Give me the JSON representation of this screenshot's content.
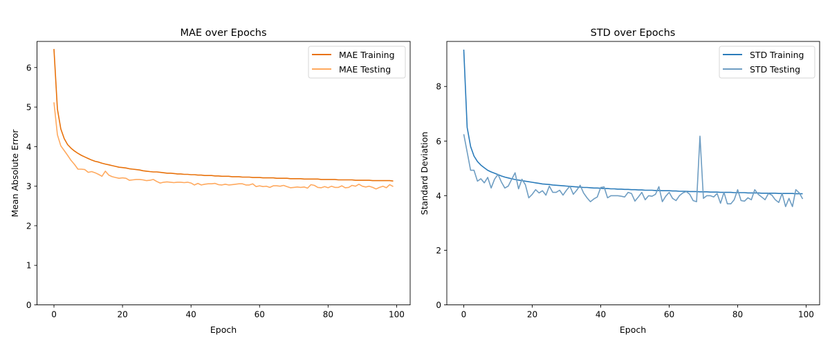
{
  "chart_data": [
    {
      "type": "line",
      "title": "MAE over Epochs",
      "xlabel": "Epoch",
      "ylabel": "Mean Absolute Error",
      "xlim": [
        -4.95,
        103.95
      ],
      "ylim": [
        0,
        6.66
      ],
      "xticks": [
        0,
        20,
        40,
        60,
        80,
        100
      ],
      "yticks": [
        0,
        1,
        2,
        3,
        4,
        5,
        6
      ],
      "grid": false,
      "legend_position": "top-right",
      "series": [
        {
          "name": "MAE Training",
          "color": "#e8710a",
          "values": [
            6.47,
            4.95,
            4.45,
            4.2,
            4.05,
            3.96,
            3.89,
            3.83,
            3.78,
            3.74,
            3.7,
            3.66,
            3.63,
            3.61,
            3.58,
            3.56,
            3.54,
            3.52,
            3.5,
            3.48,
            3.47,
            3.46,
            3.44,
            3.43,
            3.42,
            3.41,
            3.39,
            3.38,
            3.37,
            3.36,
            3.36,
            3.35,
            3.34,
            3.33,
            3.33,
            3.32,
            3.31,
            3.31,
            3.3,
            3.3,
            3.29,
            3.29,
            3.28,
            3.28,
            3.27,
            3.27,
            3.27,
            3.26,
            3.26,
            3.25,
            3.25,
            3.25,
            3.24,
            3.24,
            3.24,
            3.23,
            3.23,
            3.23,
            3.22,
            3.22,
            3.22,
            3.21,
            3.21,
            3.21,
            3.21,
            3.2,
            3.2,
            3.2,
            3.2,
            3.19,
            3.19,
            3.19,
            3.19,
            3.18,
            3.18,
            3.18,
            3.18,
            3.18,
            3.17,
            3.17,
            3.17,
            3.17,
            3.17,
            3.16,
            3.16,
            3.16,
            3.16,
            3.16,
            3.15,
            3.15,
            3.15,
            3.15,
            3.15,
            3.14,
            3.14,
            3.14,
            3.14,
            3.14,
            3.14,
            3.13
          ]
        },
        {
          "name": "MAE Testing",
          "color": "#ffa95e",
          "values": [
            5.12,
            4.3,
            4.02,
            3.9,
            3.78,
            3.65,
            3.55,
            3.43,
            3.43,
            3.42,
            3.35,
            3.37,
            3.34,
            3.3,
            3.25,
            3.38,
            3.28,
            3.24,
            3.22,
            3.2,
            3.21,
            3.2,
            3.15,
            3.16,
            3.17,
            3.17,
            3.16,
            3.14,
            3.15,
            3.17,
            3.12,
            3.08,
            3.1,
            3.11,
            3.1,
            3.09,
            3.1,
            3.1,
            3.09,
            3.1,
            3.08,
            3.03,
            3.07,
            3.03,
            3.05,
            3.06,
            3.06,
            3.07,
            3.04,
            3.03,
            3.05,
            3.03,
            3.04,
            3.05,
            3.06,
            3.06,
            3.03,
            3.03,
            3.06,
            2.99,
            3.01,
            2.99,
            3.0,
            2.97,
            3.01,
            3.01,
            3.0,
            3.02,
            2.99,
            2.96,
            2.97,
            2.98,
            2.97,
            2.98,
            2.95,
            3.04,
            3.02,
            2.97,
            2.96,
            2.99,
            2.96,
            3.0,
            2.97,
            2.97,
            3.01,
            2.96,
            2.97,
            3.02,
            3.0,
            3.05,
            3.0,
            2.98,
            3.0,
            2.97,
            2.93,
            2.97,
            3.0,
            2.96,
            3.04,
            2.99
          ]
        }
      ]
    },
    {
      "type": "line",
      "title": "STD over Epochs",
      "xlabel": "Epoch",
      "ylabel": "Standard Deviation",
      "xlim": [
        -4.95,
        103.95
      ],
      "ylim": [
        0,
        9.65
      ],
      "xticks": [
        0,
        20,
        40,
        60,
        80,
        100
      ],
      "yticks": [
        0,
        2,
        4,
        6,
        8
      ],
      "grid": false,
      "legend_position": "top-right",
      "series": [
        {
          "name": "STD Training",
          "color": "#2a7bba",
          "values": [
            9.35,
            6.5,
            5.8,
            5.45,
            5.25,
            5.12,
            5.02,
            4.93,
            4.87,
            4.82,
            4.77,
            4.72,
            4.68,
            4.65,
            4.62,
            4.59,
            4.57,
            4.55,
            4.53,
            4.51,
            4.49,
            4.47,
            4.45,
            4.43,
            4.42,
            4.41,
            4.39,
            4.38,
            4.37,
            4.36,
            4.35,
            4.34,
            4.33,
            4.32,
            4.31,
            4.3,
            4.3,
            4.29,
            4.28,
            4.28,
            4.27,
            4.26,
            4.26,
            4.25,
            4.25,
            4.24,
            4.24,
            4.23,
            4.23,
            4.22,
            4.22,
            4.21,
            4.21,
            4.2,
            4.2,
            4.2,
            4.19,
            4.19,
            4.18,
            4.18,
            4.18,
            4.17,
            4.17,
            4.16,
            4.16,
            4.16,
            4.15,
            4.15,
            4.15,
            4.14,
            4.14,
            4.14,
            4.13,
            4.13,
            4.13,
            4.12,
            4.12,
            4.12,
            4.12,
            4.11,
            4.11,
            4.11,
            4.11,
            4.1,
            4.1,
            4.1,
            4.1,
            4.09,
            4.09,
            4.09,
            4.09,
            4.09,
            4.08,
            4.08,
            4.08,
            4.08,
            4.08,
            4.07,
            4.07,
            4.07
          ]
        },
        {
          "name": "STD Testing",
          "color": "#6e9dc2",
          "values": [
            6.25,
            5.6,
            4.93,
            4.93,
            4.53,
            4.62,
            4.47,
            4.67,
            4.28,
            4.6,
            4.78,
            4.5,
            4.28,
            4.35,
            4.6,
            4.84,
            4.25,
            4.6,
            4.4,
            3.92,
            4.05,
            4.22,
            4.1,
            4.18,
            4.02,
            4.35,
            4.12,
            4.12,
            4.2,
            4.02,
            4.2,
            4.35,
            4.05,
            4.2,
            4.38,
            4.1,
            3.92,
            3.78,
            3.88,
            3.95,
            4.3,
            4.32,
            3.92,
            4.0,
            4.0,
            4.0,
            3.98,
            3.95,
            4.12,
            4.08,
            3.8,
            3.95,
            4.12,
            3.85,
            4.0,
            3.98,
            4.05,
            4.33,
            3.78,
            3.98,
            4.12,
            3.9,
            3.82,
            4.0,
            4.1,
            4.15,
            4.05,
            3.82,
            3.78,
            6.18,
            3.9,
            4.0,
            4.0,
            3.95,
            4.08,
            3.72,
            4.12,
            3.7,
            3.7,
            3.85,
            4.22,
            3.82,
            3.8,
            3.92,
            3.85,
            4.22,
            4.05,
            3.95,
            3.85,
            4.08,
            4.02,
            3.85,
            3.75,
            4.08,
            3.6,
            3.9,
            3.6,
            4.22,
            4.1,
            3.88
          ]
        }
      ]
    }
  ]
}
